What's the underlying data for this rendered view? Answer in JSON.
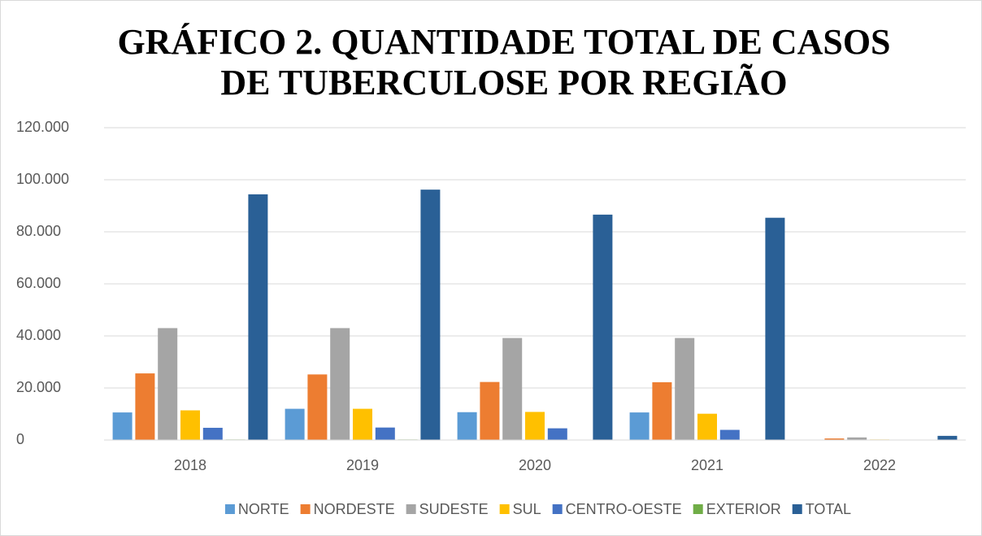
{
  "chart_data": {
    "type": "bar",
    "title": [
      "GRÁFICO 2. QUANTIDADE TOTAL DE CASOS",
      "DE TUBERCULOSE POR REGIÃO"
    ],
    "categories": [
      "2018",
      "2019",
      "2020",
      "2021",
      "2022"
    ],
    "series": [
      {
        "name": "NORTE",
        "color": "#5b9bd5",
        "values": [
          10600,
          12000,
          10700,
          10600,
          100
        ]
      },
      {
        "name": "NORDESTE",
        "color": "#ed7d31",
        "values": [
          25600,
          25200,
          22300,
          22200,
          600
        ]
      },
      {
        "name": "SUDESTE",
        "color": "#a5a5a5",
        "values": [
          43000,
          43000,
          39200,
          39200,
          1000
        ]
      },
      {
        "name": "SUL",
        "color": "#ffc000",
        "values": [
          11400,
          12000,
          10800,
          10100,
          200
        ]
      },
      {
        "name": "CENTRO-OESTE",
        "color": "#4472c4",
        "values": [
          4700,
          4800,
          4500,
          3900,
          100
        ]
      },
      {
        "name": "EXTERIOR",
        "color": "#70ad47",
        "values": [
          200,
          200,
          150,
          100,
          10
        ]
      },
      {
        "name": "TOTAL",
        "color": "#2a6096",
        "values": [
          94400,
          96200,
          86600,
          85400,
          1600
        ]
      }
    ],
    "ylim": [
      0,
      120000
    ],
    "yticks": [
      0,
      {
        "value": 20000,
        "label": "20.000"
      },
      {
        "value": 40000,
        "label": "40.000"
      },
      {
        "value": 60000,
        "label": "60.000"
      },
      {
        "value": 80000,
        "label": "80.000"
      },
      {
        "value": 100000,
        "label": "100.000"
      },
      {
        "value": 120000,
        "label": "120.000"
      }
    ],
    "grid": true,
    "legend": "bottom"
  }
}
